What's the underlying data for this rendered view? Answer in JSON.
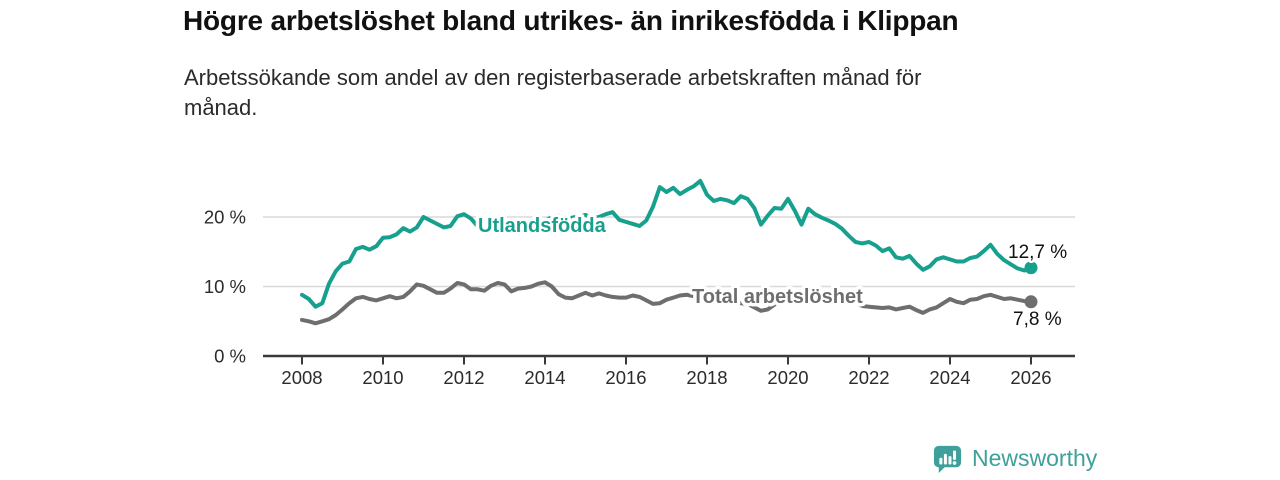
{
  "header": {
    "title": "Högre arbetslöshet bland utrikes- än inrikesfödda i Klippan",
    "subtitle": "Arbetssökande som andel av den registerbaserade arbetskraften månad för månad.",
    "subtitle_lines": [
      "Arbetssökande som andel av den registerbaserade arbetskraften månad för",
      "månad."
    ]
  },
  "footer": {
    "brand": "Newsworthy",
    "brand_color": "#3fa09b"
  },
  "chart_data": {
    "type": "line",
    "title": "Högre arbetslöshet bland utrikes- än inrikesfödda i Klippan",
    "xlabel": "",
    "ylabel": "",
    "unit": "%",
    "grid": true,
    "ylim": [
      0,
      28
    ],
    "x_start_year": 2008,
    "x_end_year": 2026,
    "x_step_months": 2,
    "x_ticks": [
      "2008",
      "2010",
      "2012",
      "2014",
      "2016",
      "2018",
      "2020",
      "2022",
      "2024",
      "2026"
    ],
    "y_ticks": [
      {
        "value": 0,
        "label": "0 %"
      },
      {
        "value": 10,
        "label": "10 %"
      },
      {
        "value": 20,
        "label": "20 %"
      }
    ],
    "series": [
      {
        "name": "Utlandsfödda",
        "color": "#18a08f",
        "end_label": "12,7 %",
        "end_value": 12.7,
        "values": [
          8.8,
          8.2,
          7.1,
          7.6,
          10.4,
          12.2,
          13.3,
          13.6,
          15.4,
          15.7,
          15.3,
          15.8,
          17.0,
          17.1,
          17.5,
          18.4,
          17.9,
          18.5,
          20.0,
          19.5,
          19.0,
          18.5,
          18.7,
          20.1,
          20.4,
          19.8,
          18.7,
          18.9,
          19.4,
          19.8,
          19.2,
          18.3,
          17.7,
          18.2,
          18.8,
          19.2,
          19.6,
          19.9,
          20.2,
          19.7,
          19.9,
          20.1,
          20.3,
          19.8,
          20.0,
          20.4,
          20.7,
          19.6,
          19.3,
          19.0,
          18.7,
          19.5,
          21.5,
          24.3,
          23.6,
          24.2,
          23.3,
          23.9,
          24.4,
          25.2,
          23.2,
          22.3,
          22.6,
          22.4,
          22.0,
          23.0,
          22.6,
          21.3,
          18.9,
          20.2,
          21.3,
          21.2,
          22.6,
          20.9,
          18.9,
          21.2,
          20.4,
          19.9,
          19.5,
          19.0,
          18.3,
          17.3,
          16.4,
          16.2,
          16.4,
          15.9,
          15.1,
          15.5,
          14.2,
          14.0,
          14.4,
          13.3,
          12.4,
          12.9,
          13.9,
          14.2,
          13.9,
          13.6,
          13.6,
          14.1,
          14.3,
          15.1,
          16.0,
          14.7,
          13.8,
          13.2,
          12.6,
          12.3,
          12.7
        ]
      },
      {
        "name": "Total arbetslöshet",
        "color": "#6e6e6e",
        "end_label": "7,8 %",
        "end_value": 7.8,
        "values": [
          5.2,
          5.0,
          4.7,
          5.0,
          5.3,
          5.9,
          6.7,
          7.6,
          8.3,
          8.5,
          8.2,
          8.0,
          8.3,
          8.6,
          8.3,
          8.5,
          9.3,
          10.3,
          10.1,
          9.6,
          9.1,
          9.1,
          9.7,
          10.5,
          10.3,
          9.6,
          9.6,
          9.4,
          10.1,
          10.5,
          10.3,
          9.3,
          9.7,
          9.8,
          10.0,
          10.4,
          10.6,
          10.0,
          8.9,
          8.4,
          8.3,
          8.7,
          9.1,
          8.7,
          9.0,
          8.7,
          8.5,
          8.4,
          8.4,
          8.7,
          8.5,
          8.0,
          7.5,
          7.6,
          8.1,
          8.4,
          8.7,
          8.8,
          8.6,
          8.5,
          8.3,
          8.1,
          8.0,
          7.9,
          7.7,
          7.6,
          7.5,
          7.0,
          6.5,
          6.7,
          7.4,
          8.0,
          8.2,
          8.6,
          9.2,
          9.3,
          9.1,
          8.9,
          8.7,
          8.4,
          8.2,
          8.0,
          7.7,
          7.2,
          7.1,
          7.0,
          6.9,
          7.0,
          6.7,
          6.9,
          7.1,
          6.6,
          6.2,
          6.7,
          7.0,
          7.6,
          8.2,
          7.8,
          7.6,
          8.1,
          8.2,
          8.6,
          8.8,
          8.5,
          8.2,
          8.3,
          8.1,
          7.9,
          7.8
        ]
      }
    ],
    "legend_position": "inline-on-line"
  }
}
